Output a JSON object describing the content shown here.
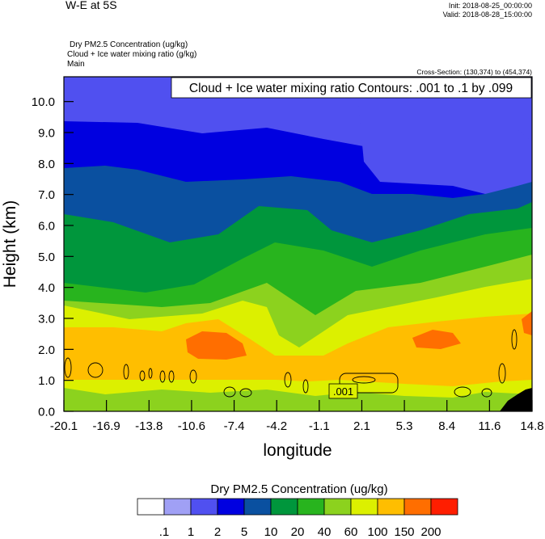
{
  "header": {
    "title": "W-E at 5S",
    "init": "Init: 2018-08-25_00:00:00",
    "valid": "Valid: 2018-08-28_15:00:00",
    "field1": "Dry PM2.5 Concentration   (ug/kg)",
    "field2": "Cloud + Ice water mixing ratio   (g/kg)",
    "field3": "Main",
    "cross_section": "Cross-Section: (130,374) to (454,374)"
  },
  "chart_data": {
    "type": "heatmap",
    "contour_label": "Cloud + Ice water mixing ratio Contours: .001 to .1 by .099",
    "contour_value_label": ".001",
    "xlabel": "longitude",
    "ylabel": "Height (km)",
    "x_ticks": [
      "-20.1",
      "-16.9",
      "-13.8",
      "-10.6",
      "-7.4",
      "-4.2",
      "-1.1",
      "2.1",
      "5.3",
      "8.4",
      "11.6",
      "14.8"
    ],
    "y_ticks": [
      "0.0",
      "1.0",
      "2.0",
      "3.0",
      "4.0",
      "5.0",
      "6.0",
      "7.0",
      "8.0",
      "9.0",
      "10.0"
    ],
    "xlim": [
      -20.1,
      14.8
    ],
    "ylim": [
      0,
      10.8
    ],
    "colorbar": {
      "title": "Dry PM2.5 Concentration  (ug/kg)",
      "levels": [
        ".1",
        "1",
        "2",
        "5",
        "10",
        "20",
        "40",
        "60",
        "100",
        "150",
        "200"
      ],
      "colors": [
        "#ffffff",
        "#a0a0f5",
        "#5050f0",
        "#0000e0",
        "#0a50a0",
        "#00963c",
        "#28b41e",
        "#8cd21e",
        "#dcf000",
        "#ffbe00",
        "#ff6e00",
        "#ff1e00"
      ]
    }
  }
}
